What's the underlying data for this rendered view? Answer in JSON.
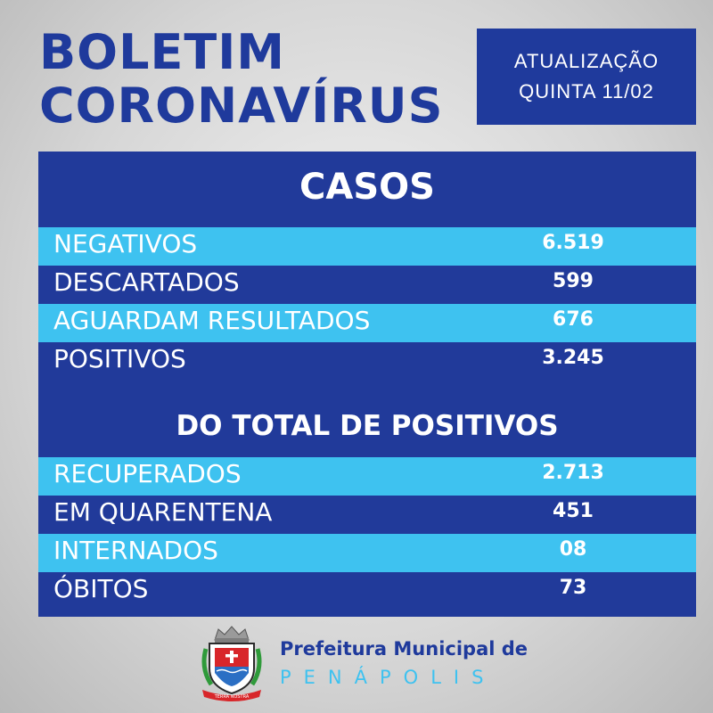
{
  "header": {
    "title_line1": "BOLETIM",
    "title_line2": "CORONAVÍRUS",
    "update_label": "ATUALIZAÇÃO",
    "update_date": "QUINTA 11/02"
  },
  "cases": {
    "title": "CASOS",
    "rows": [
      {
        "label": "NEGATIVOS",
        "value": "6.519"
      },
      {
        "label": "DESCARTADOS",
        "value": "599"
      },
      {
        "label": "AGUARDAM RESULTADOS",
        "value": "676"
      },
      {
        "label": "POSITIVOS",
        "value": "3.245"
      }
    ]
  },
  "positives": {
    "title": "DO TOTAL DE POSITIVOS",
    "rows": [
      {
        "label": "RECUPERADOS",
        "value": "2.713"
      },
      {
        "label": "EM QUARENTENA",
        "value": "451"
      },
      {
        "label": "INTERNADOS",
        "value": "08"
      },
      {
        "label": "ÓBITOS",
        "value": "73"
      }
    ]
  },
  "footer": {
    "line1": "Prefeitura Municipal de",
    "line2": "PENÁPOLIS",
    "logo": "penapolis-coat-of-arms-icon",
    "seal_text": "TERRA NOSTRA"
  },
  "colors": {
    "primary_blue": "#1f3a9c",
    "light_blue": "#3ec2f0",
    "background": "#d6d6d6"
  }
}
